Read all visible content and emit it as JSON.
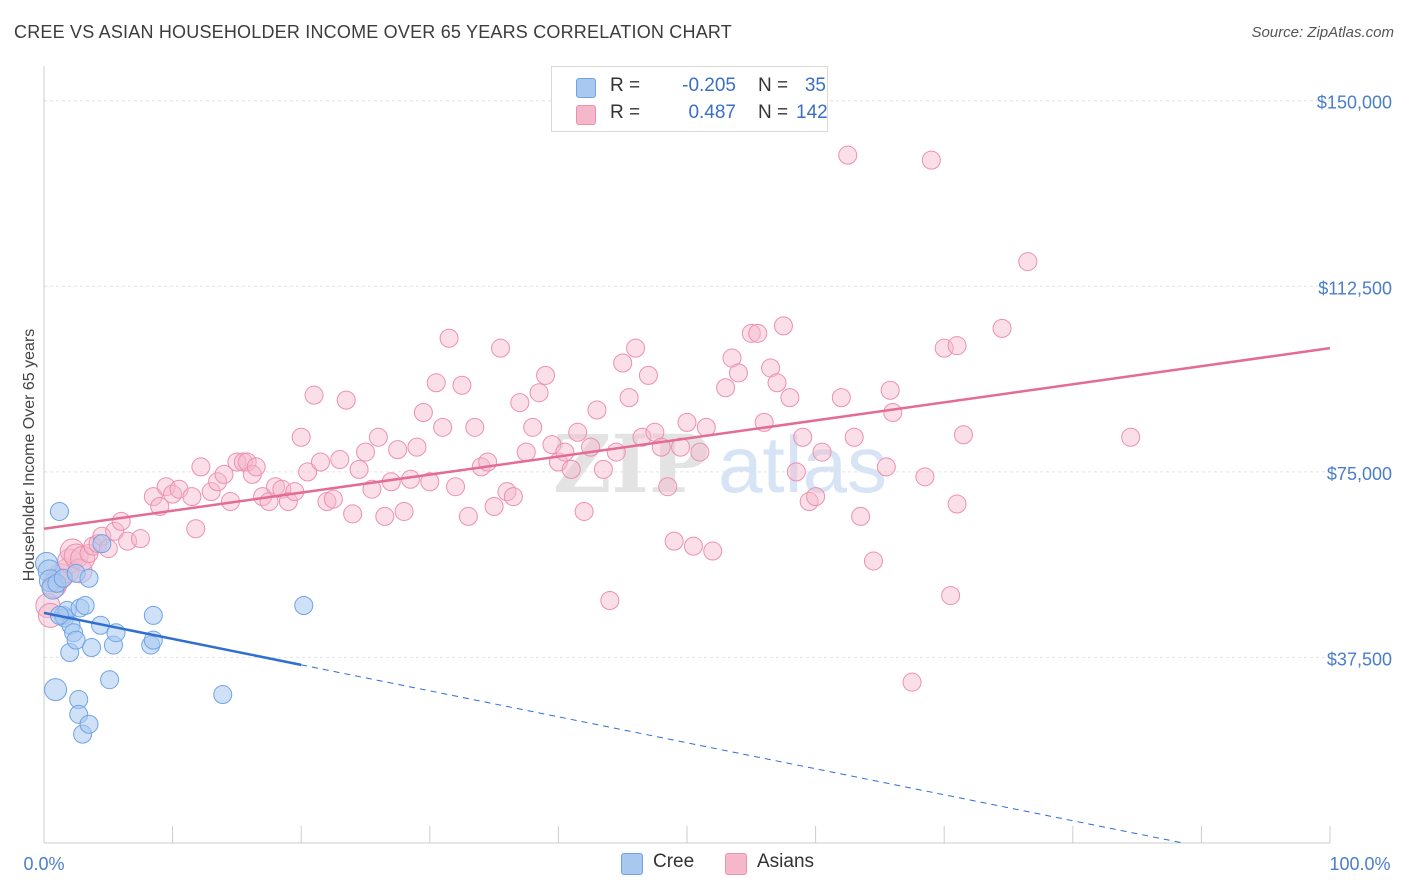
{
  "title": "CREE VS ASIAN HOUSEHOLDER INCOME OVER 65 YEARS CORRELATION CHART",
  "source": "Source: ZipAtlas.com",
  "watermark": {
    "zip": "ZIP",
    "atlas": "atlas"
  },
  "legend": {
    "rows": [
      {
        "r_label": "R =",
        "r_value": "-0.205",
        "n_label": "N =",
        "n_value": "35",
        "color": "#a8c8f0"
      },
      {
        "r_label": "R =",
        "r_value": "0.487",
        "n_label": "N =",
        "n_value": "142",
        "color": "#f5b8cb"
      }
    ]
  },
  "bottom_legend": [
    {
      "label": "Cree",
      "color": "#a8c8f0"
    },
    {
      "label": "Asians",
      "color": "#f5b8cb"
    }
  ],
  "chart_data": {
    "type": "scatter",
    "title": "CREE VS ASIAN HOUSEHOLDER INCOME OVER 65 YEARS CORRELATION CHART",
    "xlabel": "",
    "ylabel": "Householder Income Over 65 years",
    "xlim": [
      0,
      100
    ],
    "ylim": [
      0,
      155000
    ],
    "x_tick_labels": [
      "0.0%",
      "100.0%"
    ],
    "y_ticks": [
      37500,
      75000,
      112500,
      150000
    ],
    "y_tick_labels": [
      "$37,500",
      "$75,000",
      "$112,500",
      "$150,000"
    ],
    "grid": true,
    "series": [
      {
        "name": "Cree",
        "color": "#6fa3e6",
        "points": [
          [
            0.2,
            56500
          ],
          [
            0.4,
            55000
          ],
          [
            0.5,
            53000
          ],
          [
            0.7,
            51500
          ],
          [
            1.0,
            52500
          ],
          [
            1.2,
            67000
          ],
          [
            1.5,
            53500
          ],
          [
            1.5,
            46000
          ],
          [
            1.6,
            45500
          ],
          [
            1.8,
            47000
          ],
          [
            2.0,
            38500
          ],
          [
            2.1,
            44000
          ],
          [
            2.3,
            42500
          ],
          [
            2.5,
            54500
          ],
          [
            2.5,
            41000
          ],
          [
            2.8,
            47500
          ],
          [
            2.7,
            29000
          ],
          [
            2.7,
            26000
          ],
          [
            3.0,
            22000
          ],
          [
            3.2,
            48000
          ],
          [
            3.5,
            24000
          ],
          [
            3.5,
            53500
          ],
          [
            3.7,
            39500
          ],
          [
            4.4,
            44000
          ],
          [
            4.5,
            60500
          ],
          [
            5.1,
            33000
          ],
          [
            5.4,
            40000
          ],
          [
            5.6,
            42500
          ],
          [
            8.3,
            40000
          ],
          [
            8.5,
            41000
          ],
          [
            8.5,
            46000
          ],
          [
            0.9,
            31000
          ],
          [
            13.9,
            30000
          ],
          [
            20.2,
            48000
          ],
          [
            1.2,
            46000
          ]
        ],
        "trend": {
          "x": [
            0,
            20,
            100
          ],
          "y": [
            46500,
            36000,
            -6000
          ],
          "solid_until": 20
        }
      },
      {
        "name": "Asians",
        "color": "#ee8fb0",
        "points": [
          [
            0.3,
            48000
          ],
          [
            0.5,
            46000
          ],
          [
            0.8,
            52000
          ],
          [
            1.0,
            53000
          ],
          [
            1.3,
            54000
          ],
          [
            1.8,
            55000
          ],
          [
            2.0,
            57000
          ],
          [
            2.2,
            59000
          ],
          [
            2.5,
            58000
          ],
          [
            2.8,
            55000
          ],
          [
            3.0,
            57500
          ],
          [
            3.5,
            58500
          ],
          [
            3.8,
            60000
          ],
          [
            4.2,
            60500
          ],
          [
            4.5,
            62000
          ],
          [
            5.0,
            59500
          ],
          [
            5.5,
            63000
          ],
          [
            6.0,
            65000
          ],
          [
            6.5,
            61000
          ],
          [
            7.5,
            61500
          ],
          [
            8.5,
            70000
          ],
          [
            9.0,
            68000
          ],
          [
            9.5,
            72000
          ],
          [
            10.0,
            70500
          ],
          [
            10.5,
            71500
          ],
          [
            11.5,
            70000
          ],
          [
            11.8,
            63500
          ],
          [
            12.2,
            76000
          ],
          [
            13.0,
            71000
          ],
          [
            13.5,
            73000
          ],
          [
            14.0,
            74500
          ],
          [
            14.5,
            69000
          ],
          [
            15.0,
            77000
          ],
          [
            15.5,
            77000
          ],
          [
            15.8,
            77000
          ],
          [
            16.2,
            74500
          ],
          [
            16.5,
            76000
          ],
          [
            17.0,
            70000
          ],
          [
            17.5,
            69000
          ],
          [
            18.0,
            72000
          ],
          [
            18.5,
            71500
          ],
          [
            19.0,
            69000
          ],
          [
            19.5,
            71000
          ],
          [
            20.0,
            82000
          ],
          [
            20.5,
            75000
          ],
          [
            21.0,
            90500
          ],
          [
            21.5,
            77000
          ],
          [
            22.0,
            69000
          ],
          [
            22.5,
            69500
          ],
          [
            23.0,
            77500
          ],
          [
            23.5,
            89500
          ],
          [
            24.0,
            66500
          ],
          [
            24.5,
            75500
          ],
          [
            25.0,
            79000
          ],
          [
            25.5,
            71500
          ],
          [
            26.0,
            82000
          ],
          [
            26.5,
            66000
          ],
          [
            27.0,
            73000
          ],
          [
            27.5,
            79500
          ],
          [
            28.0,
            67000
          ],
          [
            28.5,
            73500
          ],
          [
            29.0,
            80000
          ],
          [
            29.5,
            87000
          ],
          [
            30.0,
            73000
          ],
          [
            30.5,
            93000
          ],
          [
            31.0,
            84000
          ],
          [
            31.5,
            102000
          ],
          [
            32.0,
            72000
          ],
          [
            32.5,
            92500
          ],
          [
            33.0,
            66000
          ],
          [
            33.5,
            84000
          ],
          [
            34.0,
            76000
          ],
          [
            34.5,
            77000
          ],
          [
            35.0,
            68000
          ],
          [
            35.5,
            100000
          ],
          [
            36.0,
            71000
          ],
          [
            36.5,
            70000
          ],
          [
            37.0,
            89000
          ],
          [
            37.5,
            79000
          ],
          [
            38.0,
            84000
          ],
          [
            38.5,
            91000
          ],
          [
            39.0,
            94500
          ],
          [
            39.5,
            80500
          ],
          [
            40.0,
            77000
          ],
          [
            40.5,
            79000
          ],
          [
            41.0,
            75500
          ],
          [
            41.5,
            83000
          ],
          [
            42.0,
            67000
          ],
          [
            42.5,
            80000
          ],
          [
            43.0,
            87500
          ],
          [
            43.5,
            75500
          ],
          [
            44.0,
            49000
          ],
          [
            44.5,
            79000
          ],
          [
            45.0,
            97000
          ],
          [
            45.5,
            90000
          ],
          [
            46.0,
            100000
          ],
          [
            46.5,
            82000
          ],
          [
            47.0,
            94500
          ],
          [
            47.5,
            83000
          ],
          [
            48.0,
            80000
          ],
          [
            48.5,
            72000
          ],
          [
            49.0,
            61000
          ],
          [
            49.5,
            80000
          ],
          [
            50.0,
            85000
          ],
          [
            50.5,
            60000
          ],
          [
            51.0,
            79000
          ],
          [
            51.5,
            84000
          ],
          [
            52.0,
            59000
          ],
          [
            53.0,
            92000
          ],
          [
            53.5,
            98000
          ],
          [
            54.0,
            95000
          ],
          [
            55.0,
            103000
          ],
          [
            55.5,
            103000
          ],
          [
            56.0,
            85000
          ],
          [
            56.5,
            96000
          ],
          [
            57.0,
            93000
          ],
          [
            57.5,
            104500
          ],
          [
            58.0,
            90000
          ],
          [
            58.5,
            75000
          ],
          [
            59.0,
            82000
          ],
          [
            59.5,
            69000
          ],
          [
            60.0,
            70000
          ],
          [
            60.5,
            79000
          ],
          [
            62.0,
            90000
          ],
          [
            62.5,
            139000
          ],
          [
            63.0,
            82000
          ],
          [
            63.5,
            66000
          ],
          [
            64.5,
            57000
          ],
          [
            65.5,
            76000
          ],
          [
            65.8,
            91500
          ],
          [
            66.0,
            87000
          ],
          [
            67.5,
            32500
          ],
          [
            68.5,
            74000
          ],
          [
            69.0,
            138000
          ],
          [
            70.0,
            100000
          ],
          [
            70.5,
            50000
          ],
          [
            71.0,
            100500
          ],
          [
            71.5,
            82500
          ],
          [
            71.0,
            68500
          ],
          [
            74.5,
            104000
          ],
          [
            76.5,
            117500
          ],
          [
            84.5,
            82000
          ]
        ],
        "trend": {
          "x": [
            0,
            100
          ],
          "y": [
            63500,
            100000
          ]
        }
      }
    ]
  }
}
